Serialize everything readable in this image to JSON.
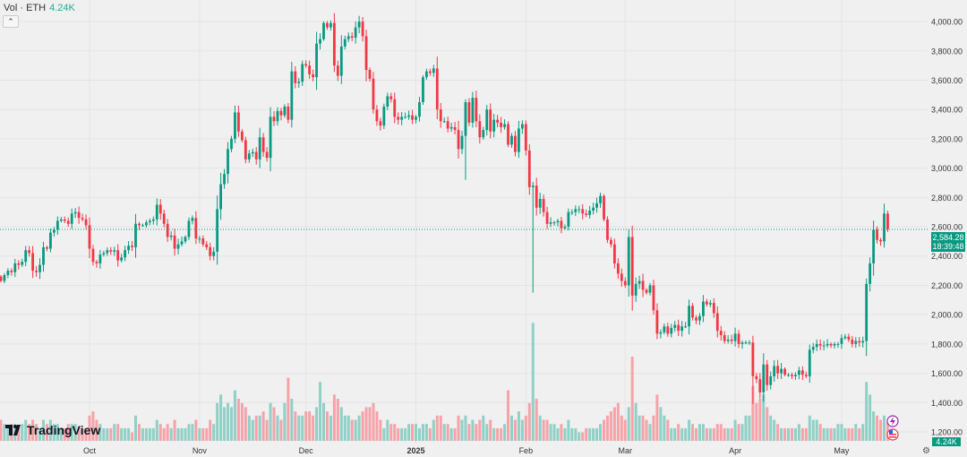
{
  "legend": {
    "label": "Vol · ETH",
    "value": "4.24K"
  },
  "logo_text": "TradingView",
  "price_label": {
    "value": "2,584.28",
    "countdown": "18:39:48"
  },
  "volume_label": "4.24K",
  "colors": {
    "up": "#089981",
    "down": "#f23645",
    "up_vol": "#8fd0c7",
    "down_vol": "#f5a3a9",
    "grid": "#e4e4e4"
  },
  "chart_data": {
    "type": "candlestick",
    "symbol": "ETH",
    "interval": "1D",
    "start_date": "2024-09-06",
    "ylim": [
      1100,
      4150
    ],
    "y_ticks": [
      1200,
      1400,
      1600,
      1800,
      2000,
      2200,
      2400,
      2600,
      2800,
      3000,
      3200,
      3400,
      3600,
      3800,
      4000
    ],
    "y_tick_labels": [
      "1,200.00",
      "1,400.00",
      "1,600.00",
      "1,800.00",
      "2,000.00",
      "2,200.00",
      "2,400.00",
      "2,600.00",
      "2,800.00",
      "3,000.00",
      "3,200.00",
      "3,400.00",
      "3,600.00",
      "3,800.00",
      "4,000.00"
    ],
    "x_ticks": [
      {
        "label": "Oct",
        "day": 25
      },
      {
        "label": "Nov",
        "day": 56
      },
      {
        "label": "Dec",
        "day": 86
      },
      {
        "label": "2025",
        "day": 117
      },
      {
        "label": "Feb",
        "day": 148
      },
      {
        "label": "Mar",
        "day": 176
      },
      {
        "label": "Apr",
        "day": 207
      },
      {
        "label": "May",
        "day": 237
      }
    ],
    "first_open": 2260,
    "closes": [
      2230,
      2270,
      2300,
      2290,
      2350,
      2340,
      2360,
      2440,
      2420,
      2300,
      2290,
      2340,
      2460,
      2450,
      2560,
      2580,
      2640,
      2650,
      2640,
      2620,
      2690,
      2700,
      2660,
      2650,
      2610,
      2450,
      2360,
      2350,
      2410,
      2420,
      2440,
      2430,
      2440,
      2370,
      2390,
      2440,
      2470,
      2460,
      2620,
      2610,
      2610,
      2630,
      2640,
      2650,
      2750,
      2690,
      2620,
      2530,
      2540,
      2450,
      2480,
      2500,
      2530,
      2640,
      2660,
      2520,
      2520,
      2480,
      2460,
      2400,
      2430,
      2720,
      2890,
      2960,
      3130,
      3200,
      3380,
      3250,
      3190,
      3060,
      3100,
      3110,
      3060,
      3210,
      3110,
      3070,
      3350,
      3320,
      3390,
      3360,
      3420,
      3330,
      3660,
      3580,
      3590,
      3710,
      3700,
      3640,
      3620,
      3850,
      3880,
      3990,
      3960,
      3990,
      3700,
      3630,
      3830,
      3880,
      3900,
      3890,
      3960,
      4000,
      3900,
      3670,
      3610,
      3400,
      3320,
      3290,
      3420,
      3490,
      3470,
      3350,
      3330,
      3350,
      3350,
      3360,
      3330,
      3350,
      3450,
      3620,
      3660,
      3650,
      3680,
      3400,
      3320,
      3320,
      3270,
      3280,
      3260,
      3130,
      3220,
      3450,
      3310,
      3480,
      3320,
      3210,
      3260,
      3400,
      3250,
      3330,
      3310,
      3280,
      3300,
      3160,
      3220,
      3110,
      3270,
      3300,
      3120,
      2870,
      2880,
      2730,
      2790,
      2700,
      2620,
      2630,
      2630,
      2640,
      2590,
      2600,
      2700,
      2700,
      2720,
      2720,
      2690,
      2680,
      2710,
      2730,
      2760,
      2810,
      2650,
      2510,
      2480,
      2350,
      2280,
      2230,
      2200,
      2530,
      2130,
      2210,
      2230,
      2170,
      2150,
      2200,
      2030,
      1870,
      1880,
      1920,
      1870,
      1910,
      1930,
      1890,
      1920,
      1920,
      2060,
      1980,
      1960,
      1990,
      2090,
      2070,
      2080,
      2010,
      1890,
      1860,
      1820,
      1830,
      1820,
      1870,
      1800,
      1810,
      1810,
      1810,
      1580,
      1560,
      1470,
      1660,
      1520,
      1580,
      1650,
      1600,
      1630,
      1590,
      1590,
      1580,
      1590,
      1620,
      1590,
      1580,
      1760,
      1780,
      1800,
      1790,
      1790,
      1800,
      1790,
      1800,
      1800,
      1840,
      1850,
      1830,
      1800,
      1820,
      1810,
      1820,
      2210,
      2350,
      2580,
      2510,
      2500,
      2690,
      2584.28
    ],
    "volume_k": [
      5,
      4,
      3,
      4,
      4,
      3,
      4,
      5,
      4,
      5,
      4,
      3,
      5,
      4,
      5,
      4,
      4,
      3,
      3,
      4,
      4,
      4,
      3,
      3,
      3,
      6,
      7,
      5,
      4,
      3,
      3,
      3,
      4,
      4,
      3,
      3,
      3,
      2,
      6,
      4,
      3,
      3,
      3,
      3,
      5,
      4,
      3,
      4,
      3,
      5,
      3,
      3,
      3,
      4,
      4,
      5,
      3,
      3,
      3,
      5,
      4,
      9,
      11,
      8,
      9,
      8,
      12,
      10,
      9,
      8,
      6,
      5,
      6,
      6,
      7,
      5,
      9,
      8,
      6,
      5,
      9,
      15,
      10,
      7,
      6,
      6,
      7,
      7,
      6,
      8,
      14,
      9,
      7,
      6,
      11,
      10,
      8,
      6,
      6,
      5,
      5,
      6,
      7,
      8,
      8,
      9,
      7,
      5,
      3,
      5,
      4,
      4,
      3,
      3,
      3,
      4,
      4,
      4,
      3,
      4,
      4,
      3,
      5,
      6,
      6,
      4,
      4,
      3,
      3,
      6,
      5,
      6,
      4,
      5,
      4,
      5,
      6,
      4,
      5,
      3,
      3,
      3,
      4,
      12,
      6,
      5,
      7,
      5,
      6,
      9,
      28,
      10,
      6,
      5,
      5,
      4,
      4,
      3,
      4,
      3,
      5,
      3,
      3,
      2,
      2,
      3,
      3,
      3,
      3,
      4,
      5,
      6,
      7,
      8,
      9,
      6,
      5,
      8,
      20,
      9,
      6,
      6,
      5,
      4,
      6,
      11,
      8,
      6,
      5,
      3,
      3,
      4,
      3,
      3,
      5,
      4,
      3,
      4,
      4,
      3,
      3,
      3,
      4,
      4,
      3,
      3,
      3,
      5,
      4,
      4,
      6,
      6,
      13,
      9,
      10,
      11,
      8,
      6,
      5,
      4,
      3,
      3,
      3,
      3,
      3,
      4,
      3,
      3,
      6,
      5,
      5,
      4,
      3,
      3,
      3,
      3,
      4,
      4,
      3,
      3,
      3,
      4,
      3,
      4,
      14,
      11,
      7,
      6,
      5,
      6,
      4.24
    ]
  }
}
